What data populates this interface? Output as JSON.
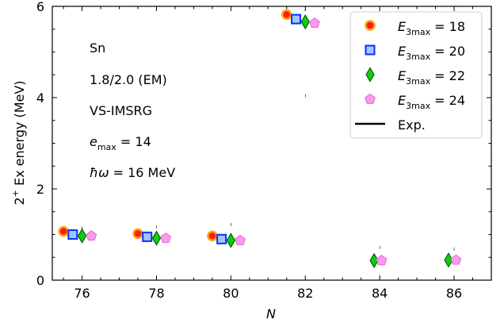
{
  "chart_data": {
    "type": "scatter",
    "xlabel": "N",
    "ylabel": "2+ Ex energy (MeV)",
    "xlim": [
      75.2,
      87.0
    ],
    "ylim": [
      0,
      6
    ],
    "x_ticks": [
      76,
      78,
      80,
      82,
      84,
      86
    ],
    "y_ticks": [
      0,
      2,
      4,
      6
    ],
    "grid": false,
    "legend_position": "top-right",
    "annotations": [
      "Sn",
      "1.8/2.0 (EM)",
      "VS-IMSRG",
      "e_max = 14",
      "ħω = 16 MeV"
    ],
    "series": [
      {
        "name": "E_3max = 18",
        "marker": "circle",
        "offset": -0.5,
        "x": [
          76,
          78,
          80,
          82
        ],
        "y": [
          1.07,
          1.02,
          0.97,
          5.82
        ],
        "fill": "#ff1a1a",
        "stroke": "#ffa500"
      },
      {
        "name": "E_3max = 20",
        "marker": "square",
        "offset": -0.25,
        "x": [
          76,
          78,
          80,
          82
        ],
        "y": [
          1.0,
          0.95,
          0.9,
          5.72
        ],
        "fill": "#a3c4ff",
        "stroke": "#0033ff"
      },
      {
        "name": "E_3max = 22",
        "marker": "diamond",
        "offset": 0.0,
        "x": [
          76,
          78,
          80,
          82,
          84,
          86
        ],
        "y": [
          0.97,
          0.92,
          0.87,
          5.66,
          0.43,
          0.44
        ],
        "fill": "#11cc11",
        "stroke": "#006600"
      },
      {
        "name": "E_3max = 24",
        "marker": "pentagon",
        "offset": 0.25,
        "x": [
          76,
          78,
          80,
          82,
          84,
          86
        ],
        "y": [
          0.97,
          0.92,
          0.87,
          5.63,
          0.43,
          0.44
        ],
        "fill": "#ff99ee",
        "stroke": "#dd77dd"
      },
      {
        "name": "Exp.",
        "marker": "line",
        "x": [
          76,
          78,
          80,
          82,
          84,
          86
        ],
        "y": [
          1.14,
          1.17,
          1.22,
          4.04,
          0.72,
          0.68
        ],
        "color": "#000000"
      }
    ]
  },
  "annotation_text": {
    "line1": "Sn",
    "line2": "1.8/2.0 (EM)",
    "line3": "VS-IMSRG",
    "emax_symbol": "e",
    "emax_sub": "max",
    "emax_value": " = 14",
    "hw_symbol": "ħω",
    "hw_value": " = 16 MeV"
  },
  "ylabel_parts": {
    "base": "2",
    "sup": "+",
    "rest": " Ex energy (MeV)"
  },
  "xlabel_text": "N",
  "legend": [
    {
      "sym": "E",
      "sub": "3max",
      "val": " = 18"
    },
    {
      "sym": "E",
      "sub": "3max",
      "val": " = 20"
    },
    {
      "sym": "E",
      "sub": "3max",
      "val": " = 22"
    },
    {
      "sym": "E",
      "sub": "3max",
      "val": " = 24"
    },
    {
      "label": "Exp."
    }
  ]
}
